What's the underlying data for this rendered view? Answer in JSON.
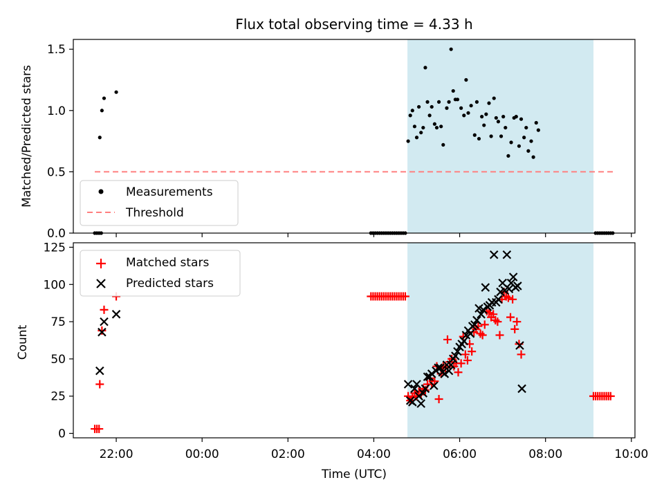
{
  "figure": {
    "title": "Flux total observing time = 4.33 h"
  },
  "colors": {
    "shade": "#add8e6",
    "threshold": "#ff7f7f",
    "measurement": "#000000",
    "matched": "#ff0000",
    "predicted": "#000000"
  },
  "chart_data": [
    {
      "type": "scatter",
      "ylabel": "Matched/Predicted stars",
      "xlabel": "",
      "ylim": [
        0,
        1.58
      ],
      "yticks": [
        0.0,
        0.5,
        1.0,
        1.5
      ],
      "ytick_labels": [
        "0.0",
        "0.5",
        "1.0",
        "1.5"
      ],
      "shaded_interval": [
        "04:47",
        "09:07"
      ],
      "legend": {
        "placement": "lower-left",
        "entries": [
          "Measurements",
          "Threshold"
        ]
      },
      "threshold": {
        "name": "Threshold",
        "value": 0.5,
        "x_range": [
          "21:30",
          "09:35"
        ]
      },
      "series": [
        {
          "name": "Measurements",
          "points": [
            [
              "21:30",
              0
            ],
            [
              "21:33",
              0
            ],
            [
              "21:36",
              0
            ],
            [
              "21:39",
              0
            ],
            [
              "21:37",
              0.78
            ],
            [
              "21:40",
              1.0
            ],
            [
              "21:43",
              1.1
            ],
            [
              "22:00",
              1.15
            ],
            [
              "03:56",
              0
            ],
            [
              "03:59",
              0
            ],
            [
              "04:02",
              0
            ],
            [
              "04:05",
              0
            ],
            [
              "04:08",
              0
            ],
            [
              "04:11",
              0
            ],
            [
              "04:14",
              0
            ],
            [
              "04:17",
              0
            ],
            [
              "04:20",
              0
            ],
            [
              "04:23",
              0
            ],
            [
              "04:26",
              0
            ],
            [
              "04:29",
              0
            ],
            [
              "04:32",
              0
            ],
            [
              "04:35",
              0
            ],
            [
              "04:38",
              0
            ],
            [
              "04:41",
              0
            ],
            [
              "04:44",
              0
            ],
            [
              "04:48",
              0.75
            ],
            [
              "04:51",
              0.96
            ],
            [
              "04:54",
              1.0
            ],
            [
              "04:57",
              0.87
            ],
            [
              "05:00",
              0.78
            ],
            [
              "05:03",
              1.03
            ],
            [
              "05:06",
              0.82
            ],
            [
              "05:09",
              0.86
            ],
            [
              "05:12",
              1.35
            ],
            [
              "05:15",
              1.07
            ],
            [
              "05:18",
              0.96
            ],
            [
              "05:21",
              1.03
            ],
            [
              "05:25",
              0.89
            ],
            [
              "05:28",
              0.86
            ],
            [
              "05:31",
              1.07
            ],
            [
              "05:34",
              0.87
            ],
            [
              "05:37",
              0.72
            ],
            [
              "05:42",
              1.02
            ],
            [
              "05:45",
              1.07
            ],
            [
              "05:48",
              1.5
            ],
            [
              "05:51",
              1.16
            ],
            [
              "05:54",
              1.09
            ],
            [
              "05:57",
              1.09
            ],
            [
              "06:02",
              1.02
            ],
            [
              "06:06",
              0.96
            ],
            [
              "06:09",
              1.25
            ],
            [
              "06:12",
              0.98
            ],
            [
              "06:16",
              1.04
            ],
            [
              "06:21",
              0.8
            ],
            [
              "06:24",
              1.07
            ],
            [
              "06:27",
              0.77
            ],
            [
              "06:31",
              0.95
            ],
            [
              "06:34",
              0.88
            ],
            [
              "06:37",
              0.97
            ],
            [
              "06:41",
              1.06
            ],
            [
              "06:44",
              0.79
            ],
            [
              "06:48",
              1.1
            ],
            [
              "06:51",
              0.94
            ],
            [
              "06:54",
              0.91
            ],
            [
              "06:58",
              0.79
            ],
            [
              "07:01",
              0.95
            ],
            [
              "07:04",
              0.86
            ],
            [
              "07:08",
              0.63
            ],
            [
              "07:12",
              0.74
            ],
            [
              "07:16",
              0.94
            ],
            [
              "07:19",
              0.95
            ],
            [
              "07:23",
              0.71
            ],
            [
              "07:26",
              0.93
            ],
            [
              "07:30",
              0.78
            ],
            [
              "07:33",
              0.86
            ],
            [
              "07:36",
              0.67
            ],
            [
              "07:40",
              0.75
            ],
            [
              "07:43",
              0.62
            ],
            [
              "07:47",
              0.9
            ],
            [
              "07:50",
              0.84
            ],
            [
              "09:10",
              0
            ],
            [
              "09:13",
              0
            ],
            [
              "09:16",
              0
            ],
            [
              "09:19",
              0
            ],
            [
              "09:22",
              0
            ],
            [
              "09:25",
              0
            ],
            [
              "09:28",
              0
            ],
            [
              "09:31",
              0
            ],
            [
              "09:34",
              0
            ]
          ]
        }
      ]
    },
    {
      "type": "scatter",
      "ylabel": "Count",
      "xlabel": "Time (UTC)",
      "ylim": [
        -3,
        128
      ],
      "yticks": [
        0,
        25,
        50,
        75,
        100,
        125
      ],
      "ytick_labels": [
        "0",
        "25",
        "50",
        "75",
        "100",
        "125"
      ],
      "xticks": [
        "22:00",
        "00:00",
        "02:00",
        "04:00",
        "06:00",
        "08:00",
        "10:00"
      ],
      "xlim": [
        "21:00",
        "10:05"
      ],
      "shaded_interval": [
        "04:47",
        "09:07"
      ],
      "legend": {
        "placement": "upper-left",
        "entries": [
          "Matched stars",
          "Predicted stars"
        ]
      },
      "series": [
        {
          "name": "Matched stars",
          "marker": "plus",
          "points": [
            [
              "21:30",
              3
            ],
            [
              "21:33",
              3
            ],
            [
              "21:36",
              3
            ],
            [
              "21:37",
              33
            ],
            [
              "21:40",
              69
            ],
            [
              "21:43",
              83
            ],
            [
              "22:00",
              92
            ],
            [
              "03:56",
              92
            ],
            [
              "03:59",
              92
            ],
            [
              "04:02",
              92
            ],
            [
              "04:05",
              92
            ],
            [
              "04:08",
              92
            ],
            [
              "04:11",
              92
            ],
            [
              "04:14",
              92
            ],
            [
              "04:17",
              92
            ],
            [
              "04:20",
              92
            ],
            [
              "04:23",
              92
            ],
            [
              "04:26",
              92
            ],
            [
              "04:29",
              92
            ],
            [
              "04:32",
              92
            ],
            [
              "04:35",
              92
            ],
            [
              "04:38",
              92
            ],
            [
              "04:41",
              92
            ],
            [
              "04:44",
              92
            ],
            [
              "04:48",
              25
            ],
            [
              "04:51",
              22
            ],
            [
              "04:54",
              24
            ],
            [
              "04:57",
              27
            ],
            [
              "05:00",
              25
            ],
            [
              "05:03",
              28
            ],
            [
              "05:06",
              26
            ],
            [
              "05:09",
              30
            ],
            [
              "05:12",
              29
            ],
            [
              "05:15",
              33
            ],
            [
              "05:18",
              37
            ],
            [
              "05:21",
              33
            ],
            [
              "05:25",
              35
            ],
            [
              "05:28",
              45
            ],
            [
              "05:31",
              23
            ],
            [
              "05:34",
              40
            ],
            [
              "05:37",
              45
            ],
            [
              "05:40",
              44
            ],
            [
              "05:43",
              63
            ],
            [
              "05:46",
              48
            ],
            [
              "05:49",
              50
            ],
            [
              "05:52",
              45
            ],
            [
              "05:55",
              47
            ],
            [
              "05:58",
              41
            ],
            [
              "06:02",
              47
            ],
            [
              "06:05",
              65
            ],
            [
              "06:08",
              53
            ],
            [
              "06:11",
              49
            ],
            [
              "06:14",
              60
            ],
            [
              "06:17",
              55
            ],
            [
              "06:20",
              68
            ],
            [
              "06:23",
              70
            ],
            [
              "06:26",
              72
            ],
            [
              "06:29",
              67
            ],
            [
              "06:32",
              66
            ],
            [
              "06:35",
              73
            ],
            [
              "06:38",
              82
            ],
            [
              "06:41",
              81
            ],
            [
              "06:44",
              78
            ],
            [
              "06:47",
              80
            ],
            [
              "06:50",
              76
            ],
            [
              "06:53",
              75
            ],
            [
              "06:56",
              66
            ],
            [
              "06:59",
              90
            ],
            [
              "07:02",
              95
            ],
            [
              "07:05",
              92
            ],
            [
              "07:08",
              91
            ],
            [
              "07:11",
              78
            ],
            [
              "07:14",
              90
            ],
            [
              "07:17",
              70
            ],
            [
              "07:20",
              75
            ],
            [
              "07:23",
              60
            ],
            [
              "07:26",
              53
            ],
            [
              "09:07",
              25
            ],
            [
              "09:10",
              25
            ],
            [
              "09:13",
              25
            ],
            [
              "09:16",
              25
            ],
            [
              "09:19",
              25
            ],
            [
              "09:22",
              25
            ],
            [
              "09:25",
              25
            ],
            [
              "09:28",
              25
            ],
            [
              "09:31",
              25
            ]
          ]
        },
        {
          "name": "Predicted stars",
          "marker": "cross",
          "points": [
            [
              "21:37",
              42
            ],
            [
              "21:40",
              68
            ],
            [
              "21:43",
              75
            ],
            [
              "22:00",
              80
            ],
            [
              "04:48",
              33
            ],
            [
              "04:51",
              22
            ],
            [
              "04:54",
              21
            ],
            [
              "04:57",
              30
            ],
            [
              "05:00",
              33
            ],
            [
              "05:03",
              25
            ],
            [
              "05:06",
              20
            ],
            [
              "05:09",
              27
            ],
            [
              "05:12",
              30
            ],
            [
              "05:15",
              38
            ],
            [
              "05:18",
              38
            ],
            [
              "05:21",
              40
            ],
            [
              "05:24",
              32
            ],
            [
              "05:27",
              42
            ],
            [
              "05:30",
              44
            ],
            [
              "05:33",
              44
            ],
            [
              "05:36",
              41
            ],
            [
              "05:39",
              40
            ],
            [
              "05:42",
              46
            ],
            [
              "05:45",
              42
            ],
            [
              "05:48",
              46
            ],
            [
              "05:51",
              50
            ],
            [
              "05:54",
              52
            ],
            [
              "05:57",
              55
            ],
            [
              "06:00",
              58
            ],
            [
              "06:03",
              60
            ],
            [
              "06:06",
              62
            ],
            [
              "06:09",
              66
            ],
            [
              "06:12",
              69
            ],
            [
              "06:15",
              67
            ],
            [
              "06:18",
              72
            ],
            [
              "06:21",
              73
            ],
            [
              "06:24",
              76
            ],
            [
              "06:27",
              84
            ],
            [
              "06:30",
              80
            ],
            [
              "06:33",
              83
            ],
            [
              "06:36",
              98
            ],
            [
              "06:39",
              85
            ],
            [
              "06:42",
              86
            ],
            [
              "06:45",
              88
            ],
            [
              "06:48",
              120
            ],
            [
              "06:51",
              88
            ],
            [
              "06:54",
              90
            ],
            [
              "06:57",
              95
            ],
            [
              "07:00",
              101
            ],
            [
              "07:03",
              96
            ],
            [
              "07:06",
              120
            ],
            [
              "07:09",
              97
            ],
            [
              "07:12",
              101
            ],
            [
              "07:15",
              105
            ],
            [
              "07:18",
              98
            ],
            [
              "07:21",
              99
            ],
            [
              "07:24",
              59
            ],
            [
              "07:27",
              30
            ]
          ]
        }
      ]
    }
  ]
}
